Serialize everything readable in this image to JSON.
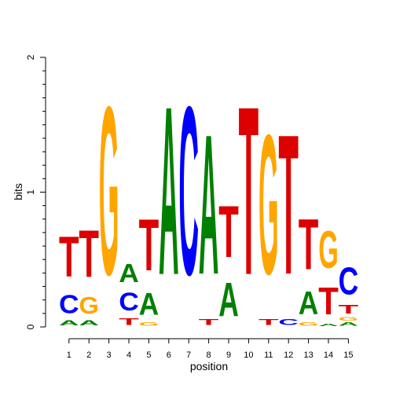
{
  "chart_data": {
    "type": "sequence-logo",
    "xlabel": "position",
    "ylabel": "bits",
    "ylim": [
      0,
      2
    ],
    "yticks": [
      "0",
      "1",
      "2"
    ],
    "colors": {
      "A": "#008000",
      "C": "#0000FF",
      "G": "#FFA500",
      "T": "#DD0000"
    },
    "positions": [
      {
        "label": "1",
        "letters": [
          {
            "base": "A",
            "bits": 0.06
          },
          {
            "base": "C",
            "bits": 0.22
          },
          {
            "base": "T",
            "bits": 0.48
          }
        ]
      },
      {
        "label": "2",
        "letters": [
          {
            "base": "A",
            "bits": 0.06
          },
          {
            "base": "G",
            "bits": 0.2
          },
          {
            "base": "T",
            "bits": 0.56
          }
        ]
      },
      {
        "label": "3",
        "letters": [
          {
            "base": "G",
            "bits": 2.0
          }
        ]
      },
      {
        "label": "4",
        "letters": [
          {
            "base": "T",
            "bits": 0.08
          },
          {
            "base": "C",
            "bits": 0.21
          },
          {
            "base": "A",
            "bits": 0.22
          }
        ]
      },
      {
        "label": "5",
        "letters": [
          {
            "base": "G",
            "bits": 0.04
          },
          {
            "base": "A",
            "bits": 0.26
          },
          {
            "base": "T",
            "bits": 0.61
          }
        ]
      },
      {
        "label": "6",
        "letters": [
          {
            "base": "A",
            "bits": 2.0
          }
        ]
      },
      {
        "label": "7",
        "letters": [
          {
            "base": "C",
            "bits": 2.0
          }
        ]
      },
      {
        "label": "8",
        "letters": [
          {
            "base": "T",
            "bits": 0.07
          },
          {
            "base": "A",
            "bits": 1.66
          }
        ]
      },
      {
        "label": "9",
        "letters": [
          {
            "base": "A",
            "bits": 0.4
          },
          {
            "base": "T",
            "bits": 0.61
          }
        ]
      },
      {
        "label": "10",
        "letters": [
          {
            "base": "T",
            "bits": 2.0
          }
        ]
      },
      {
        "label": "11",
        "letters": [
          {
            "base": "T",
            "bits": 0.07
          },
          {
            "base": "G",
            "bits": 1.66
          }
        ]
      },
      {
        "label": "12",
        "letters": [
          {
            "base": "C",
            "bits": 0.07
          },
          {
            "base": "T",
            "bits": 1.66
          }
        ]
      },
      {
        "label": "13",
        "letters": [
          {
            "base": "G",
            "bits": 0.04
          },
          {
            "base": "A",
            "bits": 0.27
          },
          {
            "base": "T",
            "bits": 0.6
          }
        ]
      },
      {
        "label": "14",
        "letters": [
          {
            "base": "A",
            "bits": 0.03
          },
          {
            "base": "T",
            "bits": 0.32
          },
          {
            "base": "G",
            "bits": 0.44
          }
        ]
      },
      {
        "label": "15",
        "letters": [
          {
            "base": "A",
            "bits": 0.04
          },
          {
            "base": "G",
            "bits": 0.04
          },
          {
            "base": "T",
            "bits": 0.1
          },
          {
            "base": "C",
            "bits": 0.32
          }
        ]
      }
    ]
  }
}
